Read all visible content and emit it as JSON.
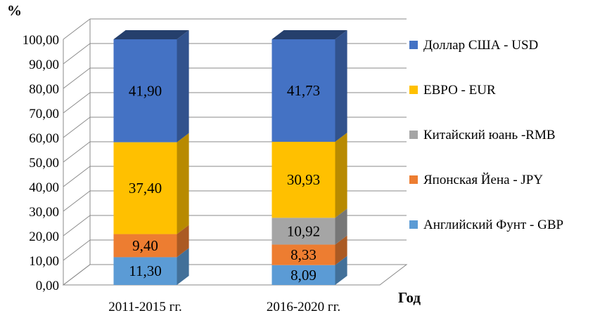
{
  "chart_data": {
    "type": "bar",
    "stacked": true,
    "three_d": true,
    "ylabel": "%",
    "xlabel": "Год",
    "ylim": [
      0,
      100
    ],
    "y_ticks": [
      "0,00",
      "10,00",
      "20,00",
      "30,00",
      "40,00",
      "50,00",
      "60,00",
      "70,00",
      "80,00",
      "90,00",
      "100,00"
    ],
    "grid": true,
    "legend_position": "right",
    "categories": [
      "2011-2015 гг.",
      "2016-2020 гг."
    ],
    "series": [
      {
        "name": "Английский Фунт - GBP",
        "color": "#5B9BD5",
        "values": [
          11.3,
          8.09
        ],
        "labels": [
          "11,30",
          "8,09"
        ]
      },
      {
        "name": "Японская Йена - JPY",
        "color": "#ED7D31",
        "values": [
          9.4,
          8.33
        ],
        "labels": [
          "9,40",
          "8,33"
        ]
      },
      {
        "name": "Китайский юань -RMB",
        "color": "#A5A5A5",
        "values": [
          0,
          10.92
        ],
        "labels": [
          "",
          "10,92"
        ]
      },
      {
        "name": "ЕВРО - EUR",
        "color": "#FFC000",
        "values": [
          37.4,
          30.93
        ],
        "labels": [
          "37,40",
          "30,93"
        ]
      },
      {
        "name": "Доллар США - USD",
        "color": "#4472C4",
        "values": [
          41.9,
          41.73
        ],
        "labels": [
          "41,90",
          "41,73"
        ]
      }
    ],
    "legend_order": [
      4,
      3,
      2,
      1,
      0
    ]
  }
}
